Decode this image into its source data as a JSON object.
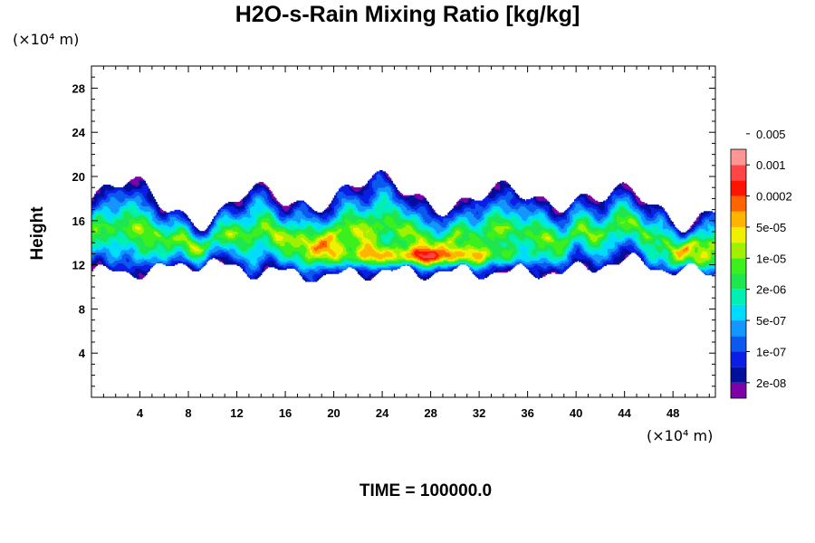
{
  "chart_data": {
    "type": "heatmap",
    "title": "H2O-s-Rain Mixing Ratio [kg/kg]",
    "ylabel": "Height",
    "xlabel": "",
    "x_unit": "(×10⁴ m)",
    "y_unit": "(×10⁴ m)",
    "xlim": [
      0,
      51.5
    ],
    "ylim": [
      0,
      30
    ],
    "x_ticks": [
      4,
      8,
      12,
      16,
      20,
      24,
      28,
      32,
      36,
      40,
      44,
      48
    ],
    "y_ticks": [
      4,
      8,
      12,
      16,
      20,
      24,
      28
    ],
    "colorbar": {
      "colors": [
        "#7d00a8",
        "#00109a",
        "#0a1ee6",
        "#0a5af0",
        "#1496ff",
        "#00dcff",
        "#00f0b4",
        "#1ee650",
        "#3cf01e",
        "#a0f000",
        "#f0f000",
        "#ffb400",
        "#ff6400",
        "#ff1400",
        "#ff4646",
        "#ff9696"
      ],
      "labels": [
        "2e-08",
        "1e-07",
        "5e-07",
        "2e-06",
        "1e-05",
        "5e-05",
        "0.0002",
        "0.001",
        "0.005"
      ]
    },
    "cloud_layer": {
      "base_height": 11.5,
      "top_height": 19.5,
      "max_value": "0.001",
      "max_region_x": [
        24,
        34
      ],
      "max_region_y": [
        12,
        13
      ]
    },
    "time_label": "TIME = 100000.0"
  }
}
